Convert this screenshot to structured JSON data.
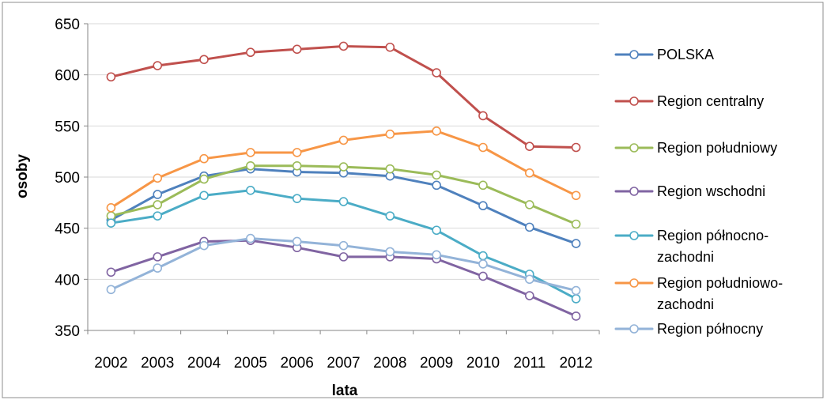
{
  "chart_data": {
    "type": "line",
    "title": "",
    "xlabel": "lata",
    "ylabel": "osoby",
    "ylim": [
      350,
      650
    ],
    "yticks": [
      350,
      400,
      450,
      500,
      550,
      600,
      650
    ],
    "grid": true,
    "legend_position": "right",
    "categories": [
      "2002",
      "2003",
      "2004",
      "2005",
      "2006",
      "2007",
      "2008",
      "2009",
      "2010",
      "2011",
      "2012"
    ],
    "series": [
      {
        "name": "POLSKA",
        "legend_lines": [
          "POLSKA"
        ],
        "color": "#4f81bd",
        "values": [
          458,
          483,
          501,
          508,
          505,
          504,
          501,
          492,
          472,
          451,
          435
        ]
      },
      {
        "name": "Region centralny",
        "legend_lines": [
          "Region centralny"
        ],
        "color": "#c0504d",
        "values": [
          598,
          609,
          615,
          622,
          625,
          628,
          627,
          602,
          560,
          530,
          529
        ]
      },
      {
        "name": "Region południowy",
        "legend_lines": [
          "Region południowy"
        ],
        "color": "#9bbb59",
        "values": [
          462,
          473,
          498,
          511,
          511,
          510,
          508,
          502,
          492,
          473,
          454
        ]
      },
      {
        "name": "Region wschodni",
        "legend_lines": [
          "Region wschodni"
        ],
        "color": "#8064a2",
        "values": [
          407,
          422,
          437,
          438,
          431,
          422,
          422,
          420,
          403,
          384,
          364
        ]
      },
      {
        "name": "Region północno-zachodni",
        "legend_lines": [
          "Region północno-",
          "zachodni"
        ],
        "color": "#4bacc6",
        "values": [
          455,
          462,
          482,
          487,
          479,
          476,
          462,
          448,
          423,
          405,
          381
        ]
      },
      {
        "name": "Region południowo-zachodni",
        "legend_lines": [
          "Region południowo-",
          "zachodni"
        ],
        "color": "#f79646",
        "values": [
          470,
          499,
          518,
          524,
          524,
          536,
          542,
          545,
          529,
          504,
          482
        ]
      },
      {
        "name": "Region północny",
        "legend_lines": [
          "Region północny"
        ],
        "color": "#93b3d8",
        "values": [
          390,
          411,
          433,
          440,
          437,
          433,
          427,
          424,
          415,
          400,
          389
        ]
      }
    ]
  }
}
